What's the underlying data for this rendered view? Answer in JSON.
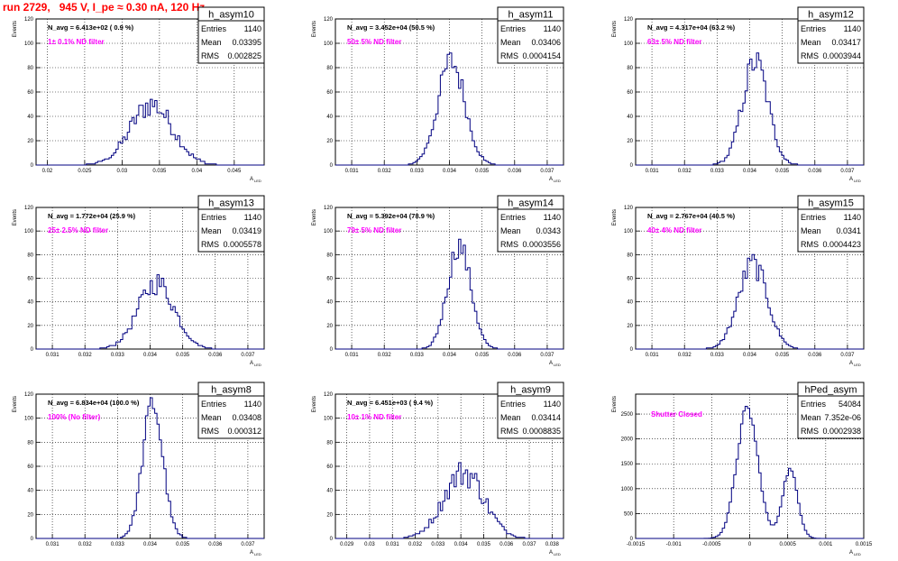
{
  "run_title": "run 2729,   945 V, I_pe ≈ 0.30 nA, 120 Hz",
  "colors": {
    "histogram_line": "#000080",
    "annotation": "#ff00ff",
    "title_text": "#ff0000",
    "grid": "#000000"
  },
  "y_axis_label": "Events",
  "x_axis_label": "A",
  "x_axis_label_sub": "LED",
  "stats_labels": {
    "entries": "Entries",
    "mean": "Mean",
    "rms": "RMS"
  },
  "chart_data": [
    {
      "type": "bar",
      "name": "h_asym10",
      "n_avg": "N_avg = 6.413e+02 ( 0.9 %)",
      "filter": "1± 0.1% ND filter",
      "stats": {
        "entries": "1140",
        "mean": "0.03395",
        "rms": "0.002825"
      },
      "xlim": [
        0.0185,
        0.049
      ],
      "ylim": [
        0,
        120
      ],
      "xticks": [
        "0.02",
        "0.025",
        "0.03",
        "0.035",
        "0.04",
        "0.045"
      ],
      "xtick_values": [
        0.02,
        0.025,
        0.03,
        0.035,
        0.04,
        0.045
      ],
      "yticks": [
        0,
        20,
        40,
        60,
        80,
        100,
        120
      ],
      "dist": {
        "shape": "gauss",
        "mean": 0.03395,
        "sigma": 0.002825,
        "peak": 50,
        "jitter": 0.22
      }
    },
    {
      "type": "bar",
      "name": "h_asym11",
      "n_avg": "N_avg = 3.452e+04 (50.5 %)",
      "filter": "50± 5% ND filter",
      "stats": {
        "entries": "1140",
        "mean": "0.03406",
        "rms": "0.0004154"
      },
      "xlim": [
        0.0305,
        0.0375
      ],
      "ylim": [
        0,
        120
      ],
      "xticks": [
        "0.031",
        "0.032",
        "0.033",
        "0.034",
        "0.035",
        "0.036",
        "0.037"
      ],
      "xtick_values": [
        0.031,
        0.032,
        0.033,
        0.034,
        0.035,
        0.036,
        0.037
      ],
      "yticks": [
        0,
        20,
        40,
        60,
        80,
        100,
        120
      ],
      "dist": {
        "shape": "gauss",
        "mean": 0.03406,
        "sigma": 0.0004154,
        "peak": 85,
        "jitter": 0.15
      }
    },
    {
      "type": "bar",
      "name": "h_asym12",
      "n_avg": "N_avg = 4.317e+04 (63.2 %)",
      "filter": "63± 5% ND filter",
      "stats": {
        "entries": "1140",
        "mean": "0.03417",
        "rms": "0.0003944"
      },
      "xlim": [
        0.0305,
        0.0375
      ],
      "ylim": [
        0,
        120
      ],
      "xticks": [
        "0.031",
        "0.032",
        "0.033",
        "0.034",
        "0.035",
        "0.036",
        "0.037"
      ],
      "xtick_values": [
        0.031,
        0.032,
        0.033,
        0.034,
        0.035,
        0.036,
        0.037
      ],
      "yticks": [
        0,
        20,
        40,
        60,
        80,
        100,
        120
      ],
      "dist": {
        "shape": "gauss",
        "mean": 0.03417,
        "sigma": 0.0003944,
        "peak": 85,
        "jitter": 0.15
      }
    },
    {
      "type": "bar",
      "name": "h_asym13",
      "n_avg": "N_avg = 1.772e+04 (25.9 %)",
      "filter": "25± 2.5% ND filter",
      "stats": {
        "entries": "1140",
        "mean": "0.03419",
        "rms": "0.0005578"
      },
      "xlim": [
        0.0305,
        0.0375
      ],
      "ylim": [
        0,
        120
      ],
      "xticks": [
        "0.031",
        "0.032",
        "0.033",
        "0.034",
        "0.035",
        "0.036",
        "0.037"
      ],
      "xtick_values": [
        0.031,
        0.032,
        0.033,
        0.034,
        0.035,
        0.036,
        0.037
      ],
      "yticks": [
        0,
        20,
        40,
        60,
        80,
        100,
        120
      ],
      "dist": {
        "shape": "gauss",
        "mean": 0.03419,
        "sigma": 0.0005578,
        "peak": 56,
        "jitter": 0.18
      }
    },
    {
      "type": "bar",
      "name": "h_asym14",
      "n_avg": "N_avg = 5.392e+04 (78.9 %)",
      "filter": "79± 5% ND filter",
      "stats": {
        "entries": "1140",
        "mean": "0.0343",
        "rms": "0.0003556"
      },
      "xlim": [
        0.0305,
        0.0375
      ],
      "ylim": [
        0,
        120
      ],
      "xticks": [
        "0.031",
        "0.032",
        "0.033",
        "0.034",
        "0.035",
        "0.036",
        "0.037"
      ],
      "xtick_values": [
        0.031,
        0.032,
        0.033,
        0.034,
        0.035,
        0.036,
        0.037
      ],
      "yticks": [
        0,
        20,
        40,
        60,
        80,
        100,
        120
      ],
      "dist": {
        "shape": "gauss",
        "mean": 0.0343,
        "sigma": 0.0003556,
        "peak": 88,
        "jitter": 0.12
      }
    },
    {
      "type": "bar",
      "name": "h_asym15",
      "n_avg": "N_avg = 2.767e+04 (40.5 %)",
      "filter": "40± 4% ND filter",
      "stats": {
        "entries": "1140",
        "mean": "0.0341",
        "rms": "0.0004423"
      },
      "xlim": [
        0.0305,
        0.0375
      ],
      "ylim": [
        0,
        120
      ],
      "xticks": [
        "0.031",
        "0.032",
        "0.033",
        "0.034",
        "0.035",
        "0.036",
        "0.037"
      ],
      "xtick_values": [
        0.031,
        0.032,
        0.033,
        0.034,
        0.035,
        0.036,
        0.037
      ],
      "yticks": [
        0,
        20,
        40,
        60,
        80,
        100,
        120
      ],
      "dist": {
        "shape": "gauss",
        "mean": 0.0341,
        "sigma": 0.0004423,
        "peak": 72,
        "jitter": 0.15
      }
    },
    {
      "type": "bar",
      "name": "h_asym8",
      "n_avg": "N_avg = 6.834e+04 (100.0 %)",
      "filter": "100% (No filter)",
      "stats": {
        "entries": "1140",
        "mean": "0.03408",
        "rms": "0.000312"
      },
      "xlim": [
        0.0305,
        0.0375
      ],
      "ylim": [
        0,
        120
      ],
      "xticks": [
        "0.031",
        "0.032",
        "0.033",
        "0.034",
        "0.035",
        "0.036",
        "0.037"
      ],
      "xtick_values": [
        0.031,
        0.032,
        0.033,
        0.034,
        0.035,
        0.036,
        0.037
      ],
      "yticks": [
        0,
        20,
        40,
        60,
        80,
        100,
        120
      ],
      "dist": {
        "shape": "gauss",
        "mean": 0.03408,
        "sigma": 0.000312,
        "peak": 112,
        "jitter": 0.1
      }
    },
    {
      "type": "bar",
      "name": "h_asym9",
      "n_avg": "N_avg = 6.451e+03 ( 9.4 %)",
      "filter": "10± 1% ND filter",
      "stats": {
        "entries": "1140",
        "mean": "0.03414",
        "rms": "0.0008835"
      },
      "xlim": [
        0.0285,
        0.0385
      ],
      "ylim": [
        0,
        120
      ],
      "xticks": [
        "0.029",
        "0.03",
        "0.031",
        "0.032",
        "0.033",
        "0.034",
        "0.035",
        "0.036",
        "0.037",
        "0.038"
      ],
      "xtick_values": [
        0.029,
        0.03,
        0.031,
        0.032,
        0.033,
        0.034,
        0.035,
        0.036,
        0.037,
        0.038
      ],
      "yticks": [
        0,
        20,
        40,
        60,
        80,
        100,
        120
      ],
      "dist": {
        "shape": "gauss",
        "mean": 0.03414,
        "sigma": 0.0008835,
        "peak": 55,
        "jitter": 0.22
      }
    },
    {
      "type": "bar",
      "name": "hPed_asym",
      "n_avg": "",
      "filter": "Shutter Closed",
      "stats": {
        "entries": "54084",
        "mean": "7.352e-06",
        "rms": "0.0002938"
      },
      "xlim": [
        -0.0015,
        0.0015
      ],
      "ylim": [
        0,
        2900
      ],
      "xticks": [
        "-0.0015",
        "-0.001",
        "-0.0005",
        "0",
        "0.0005",
        "0.001",
        "0.0015"
      ],
      "xtick_values": [
        -0.0015,
        -0.001,
        -0.0005,
        0,
        0.0005,
        0.001,
        0.0015
      ],
      "yticks": [
        0,
        500,
        1000,
        1500,
        2000,
        2500
      ],
      "dist": {
        "shape": "double",
        "components": [
          {
            "mean": -3e-05,
            "sigma": 0.00014,
            "peak": 2600
          },
          {
            "mean": 0.00053,
            "sigma": 0.0001,
            "peak": 1380
          }
        ],
        "jitter": 0.04
      }
    }
  ]
}
